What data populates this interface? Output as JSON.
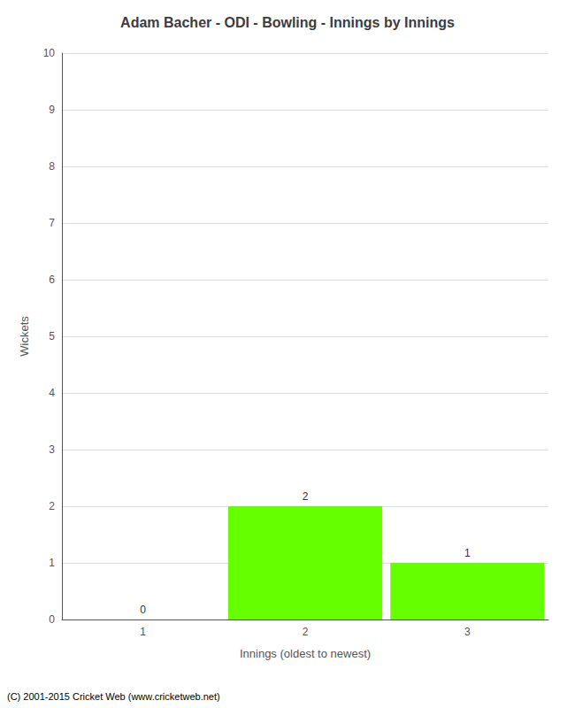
{
  "chart_data": {
    "type": "bar",
    "title": "Adam Bacher - ODI - Bowling - Innings by Innings",
    "xlabel": "Innings (oldest to newest)",
    "ylabel": "Wickets",
    "categories": [
      1,
      2,
      3
    ],
    "values": [
      0,
      2,
      1
    ],
    "color": "#66ff00",
    "ylim": [
      0,
      10
    ],
    "yticks": [
      0,
      1,
      2,
      3,
      4,
      5,
      6,
      7,
      8,
      9,
      10
    ],
    "grid": true,
    "data_labels": true,
    "footnote": "(C) 2001-2015 Cricket Web (www.cricketweb.net)"
  }
}
